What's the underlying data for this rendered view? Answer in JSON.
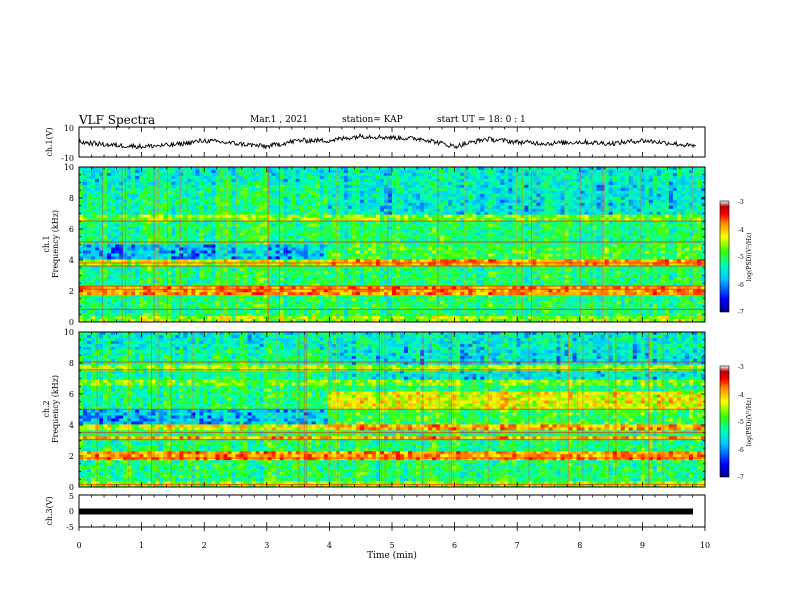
{
  "header": {
    "title": "VLF Spectra",
    "date": "Mar.1 , 2021",
    "station": "station= KAP",
    "start_ut": "start UT = 18: 0 : 1"
  },
  "chart_data": [
    {
      "type": "line",
      "panel": "ch1-waveform",
      "ylabel": "ch.1(V)",
      "ylim": [
        -10,
        10
      ],
      "yticks": [
        "10",
        "-10"
      ],
      "xlim": [
        0,
        9.85
      ],
      "approx_level_series": {
        "x_min": [
          0,
          0.5,
          1,
          1.5,
          2,
          2.5,
          3,
          3.5,
          4,
          4.5,
          5,
          5.5,
          6,
          6.5,
          7,
          7.5,
          8,
          8.5,
          9,
          9.5,
          9.85
        ],
        "y_v": [
          0,
          -2,
          -3,
          -2,
          1,
          -1,
          -3,
          1,
          1,
          4,
          3,
          2,
          -3,
          2,
          0,
          -1,
          0,
          -1,
          1,
          -1,
          -3
        ]
      }
    },
    {
      "type": "heatmap",
      "panel": "ch1-spectrogram",
      "ylabel": "ch.1\nFrequency (kHz)",
      "ylim": [
        0,
        10
      ],
      "yticks": [
        "0",
        "2",
        "4",
        "6",
        "8",
        "10"
      ],
      "colorbar": {
        "label": "log(PSD)(V²/Hz)",
        "range": [
          -7,
          -3
        ],
        "ticks": [
          "-3",
          "-4",
          "-5",
          "-6",
          "-7"
        ]
      },
      "transition_time_min": 3.9
    },
    {
      "type": "heatmap",
      "panel": "ch2-spectrogram",
      "ylabel": "ch.2\nFrequency (kHz)",
      "ylim": [
        0,
        10
      ],
      "yticks": [
        "0",
        "2",
        "4",
        "6",
        "8",
        "10"
      ],
      "colorbar": {
        "label": "log(PSD)(V²/Hz)",
        "range": [
          -7,
          -3
        ],
        "ticks": [
          "-3",
          "-4",
          "-5",
          "-6",
          "-7"
        ]
      },
      "transition_time_min": 3.9
    },
    {
      "type": "line",
      "panel": "ch3-level",
      "ylabel": "ch.3(V)",
      "ylim": [
        -5,
        5
      ],
      "yticks": [
        "5",
        "0",
        "-5"
      ],
      "series": [
        {
          "x": [
            0,
            9.85
          ],
          "values": [
            -1,
            -1
          ]
        }
      ]
    }
  ],
  "x_axis": {
    "label": "Time (min)",
    "range": [
      0,
      10
    ],
    "ticks": [
      "0",
      "1",
      "2",
      "3",
      "4",
      "5",
      "6",
      "7",
      "8",
      "9",
      "10"
    ]
  },
  "colors": {
    "axis": "#000000",
    "background": "#ffffff",
    "colormap": [
      "#00007f",
      "#0000ff",
      "#00c8ff",
      "#00ffb4",
      "#3cff00",
      "#ffff00",
      "#ff8c00",
      "#ff0000",
      "#b40000",
      "#ffffff"
    ]
  }
}
